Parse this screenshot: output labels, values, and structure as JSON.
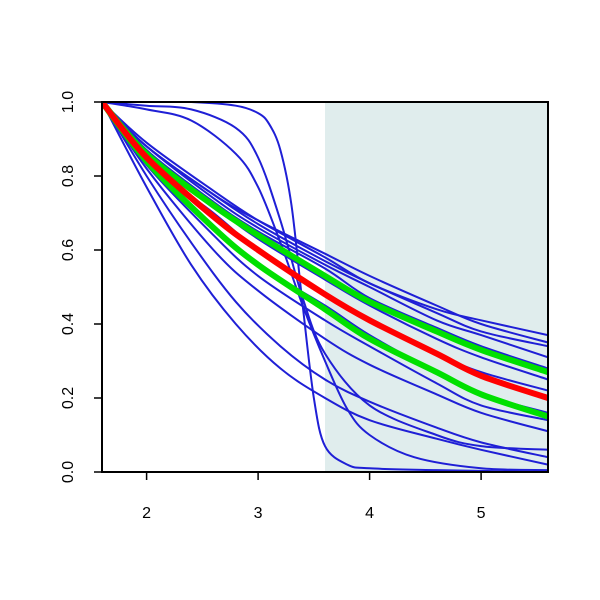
{
  "chart_data": {
    "type": "line",
    "title": "",
    "xlabel": "",
    "ylabel": "",
    "xlim": [
      1.6,
      5.6
    ],
    "ylim": [
      0.0,
      1.0
    ],
    "x_ticks": [
      2,
      3,
      4,
      5
    ],
    "x_tick_labels": [
      "2",
      "3",
      "4",
      "5"
    ],
    "y_ticks": [
      0.0,
      0.2,
      0.4,
      0.6,
      0.8,
      1.0
    ],
    "y_tick_labels": [
      "0.0",
      "0.2",
      "0.4",
      "0.6",
      "0.8",
      "1.0"
    ],
    "grid": false,
    "legend": "none",
    "shaded_region": {
      "x_from": 3.6,
      "x_to": 5.6,
      "color": "#e0eded"
    },
    "colors": {
      "model": "#1f1fd6",
      "highlight_red": "#ff0000",
      "highlight_green": "#00e000",
      "frame": "#000000"
    },
    "series": [
      {
        "color": "blue",
        "width": "thin",
        "x": [
          1.6,
          2.0,
          2.6,
          3.0,
          3.6,
          4.0,
          4.6,
          5.0,
          5.6
        ],
        "y": [
          1.0,
          0.89,
          0.76,
          0.68,
          0.58,
          0.51,
          0.44,
          0.41,
          0.37
        ]
      },
      {
        "color": "blue",
        "width": "thin",
        "x": [
          1.6,
          2.0,
          2.6,
          3.0,
          3.6,
          4.0,
          4.6,
          5.0,
          5.6
        ],
        "y": [
          1.0,
          0.88,
          0.75,
          0.68,
          0.59,
          0.53,
          0.45,
          0.4,
          0.35
        ]
      },
      {
        "color": "blue",
        "width": "thin",
        "x": [
          1.6,
          2.0,
          2.6,
          3.0,
          3.6,
          4.0,
          4.6,
          5.0,
          5.6
        ],
        "y": [
          1.0,
          0.88,
          0.75,
          0.67,
          0.57,
          0.51,
          0.43,
          0.38,
          0.34
        ]
      },
      {
        "color": "blue",
        "width": "thin",
        "x": [
          1.6,
          2.0,
          2.6,
          3.0,
          3.6,
          4.0,
          4.6,
          5.0,
          5.6
        ],
        "y": [
          1.0,
          0.88,
          0.74,
          0.66,
          0.56,
          0.5,
          0.41,
          0.37,
          0.31
        ]
      },
      {
        "color": "blue",
        "width": "thin",
        "x": [
          1.6,
          2.0,
          2.6,
          3.0,
          3.6,
          4.0,
          4.6,
          5.0,
          5.6
        ],
        "y": [
          1.0,
          0.87,
          0.73,
          0.65,
          0.55,
          0.47,
          0.39,
          0.34,
          0.28
        ]
      },
      {
        "color": "blue",
        "width": "thin",
        "x": [
          1.6,
          2.0,
          2.6,
          3.0,
          3.6,
          4.0,
          4.6,
          5.0,
          5.6
        ],
        "y": [
          1.0,
          0.87,
          0.72,
          0.63,
          0.52,
          0.45,
          0.36,
          0.31,
          0.25
        ]
      },
      {
        "color": "blue",
        "width": "thin",
        "x": [
          1.6,
          2.0,
          2.6,
          3.0,
          3.6,
          4.0,
          4.6,
          5.0,
          5.6
        ],
        "y": [
          1.0,
          0.84,
          0.7,
          0.6,
          0.48,
          0.41,
          0.32,
          0.27,
          0.22
        ]
      },
      {
        "color": "blue",
        "width": "thin",
        "x": [
          1.6,
          2.0,
          2.6,
          3.0,
          3.6,
          4.0,
          4.6,
          5.0,
          5.6
        ],
        "y": [
          1.0,
          0.84,
          0.66,
          0.56,
          0.45,
          0.37,
          0.27,
          0.21,
          0.16
        ]
      },
      {
        "color": "blue",
        "width": "thin",
        "x": [
          1.6,
          2.0,
          2.6,
          3.0,
          3.6,
          4.0,
          4.6,
          5.0,
          5.6
        ],
        "y": [
          1.0,
          0.83,
          0.64,
          0.53,
          0.41,
          0.34,
          0.24,
          0.18,
          0.14
        ]
      },
      {
        "color": "blue",
        "width": "thin",
        "x": [
          1.6,
          2.0,
          2.6,
          3.0,
          3.6,
          4.0,
          4.6,
          5.0,
          5.6
        ],
        "y": [
          1.0,
          0.82,
          0.6,
          0.49,
          0.36,
          0.29,
          0.21,
          0.16,
          0.11
        ]
      },
      {
        "color": "blue",
        "width": "thin",
        "x": [
          1.6,
          2.0,
          2.4,
          2.8,
          3.2,
          3.6,
          4.0,
          4.6,
          5.0,
          5.6
        ],
        "y": [
          1.0,
          0.8,
          0.62,
          0.46,
          0.34,
          0.25,
          0.19,
          0.12,
          0.08,
          0.04
        ]
      },
      {
        "color": "blue",
        "width": "thin",
        "x": [
          1.6,
          2.0,
          2.4,
          2.8,
          3.2,
          3.6,
          4.0,
          4.6,
          5.0,
          5.6
        ],
        "y": [
          1.0,
          0.77,
          0.56,
          0.4,
          0.28,
          0.2,
          0.14,
          0.09,
          0.06,
          0.02
        ]
      },
      {
        "color": "blue",
        "width": "thin",
        "x": [
          1.6,
          2.0,
          2.4,
          2.8,
          3.0,
          3.2,
          3.4,
          3.6,
          3.8,
          4.0,
          4.4,
          5.0,
          5.6
        ],
        "y": [
          1.0,
          0.98,
          0.95,
          0.86,
          0.77,
          0.62,
          0.45,
          0.3,
          0.17,
          0.1,
          0.04,
          0.01,
          0.005
        ]
      },
      {
        "color": "blue",
        "width": "thin",
        "x": [
          1.6,
          2.0,
          2.4,
          2.8,
          3.0,
          3.1,
          3.2,
          3.3,
          3.4,
          3.5,
          3.6,
          3.8,
          4.0,
          4.6,
          5.6
        ],
        "y": [
          1.0,
          1.0,
          1.0,
          0.99,
          0.97,
          0.94,
          0.87,
          0.72,
          0.45,
          0.2,
          0.07,
          0.02,
          0.01,
          0.005,
          0.0
        ]
      },
      {
        "color": "blue",
        "width": "thin",
        "x": [
          1.6,
          2.0,
          2.4,
          2.8,
          3.0,
          3.2,
          3.4,
          3.6,
          4.0,
          4.6,
          5.0,
          5.6
        ],
        "y": [
          1.0,
          0.99,
          0.98,
          0.93,
          0.85,
          0.68,
          0.47,
          0.32,
          0.18,
          0.1,
          0.07,
          0.06
        ]
      },
      {
        "color": "green",
        "width": "thick",
        "x": [
          1.6,
          2.0,
          2.6,
          3.0,
          3.6,
          4.0,
          4.6,
          5.0,
          5.6
        ],
        "y": [
          1.0,
          0.86,
          0.72,
          0.64,
          0.53,
          0.46,
          0.38,
          0.33,
          0.27
        ]
      },
      {
        "color": "green",
        "width": "thick",
        "x": [
          1.6,
          2.0,
          2.6,
          3.0,
          3.6,
          4.0,
          4.6,
          5.0,
          5.6
        ],
        "y": [
          1.0,
          0.84,
          0.66,
          0.56,
          0.44,
          0.36,
          0.27,
          0.21,
          0.15
        ]
      },
      {
        "color": "red",
        "width": "thick",
        "x": [
          1.6,
          2.0,
          2.6,
          3.0,
          3.6,
          4.0,
          4.6,
          5.0,
          5.6
        ],
        "y": [
          1.0,
          0.85,
          0.69,
          0.6,
          0.48,
          0.41,
          0.32,
          0.26,
          0.2
        ]
      }
    ]
  }
}
